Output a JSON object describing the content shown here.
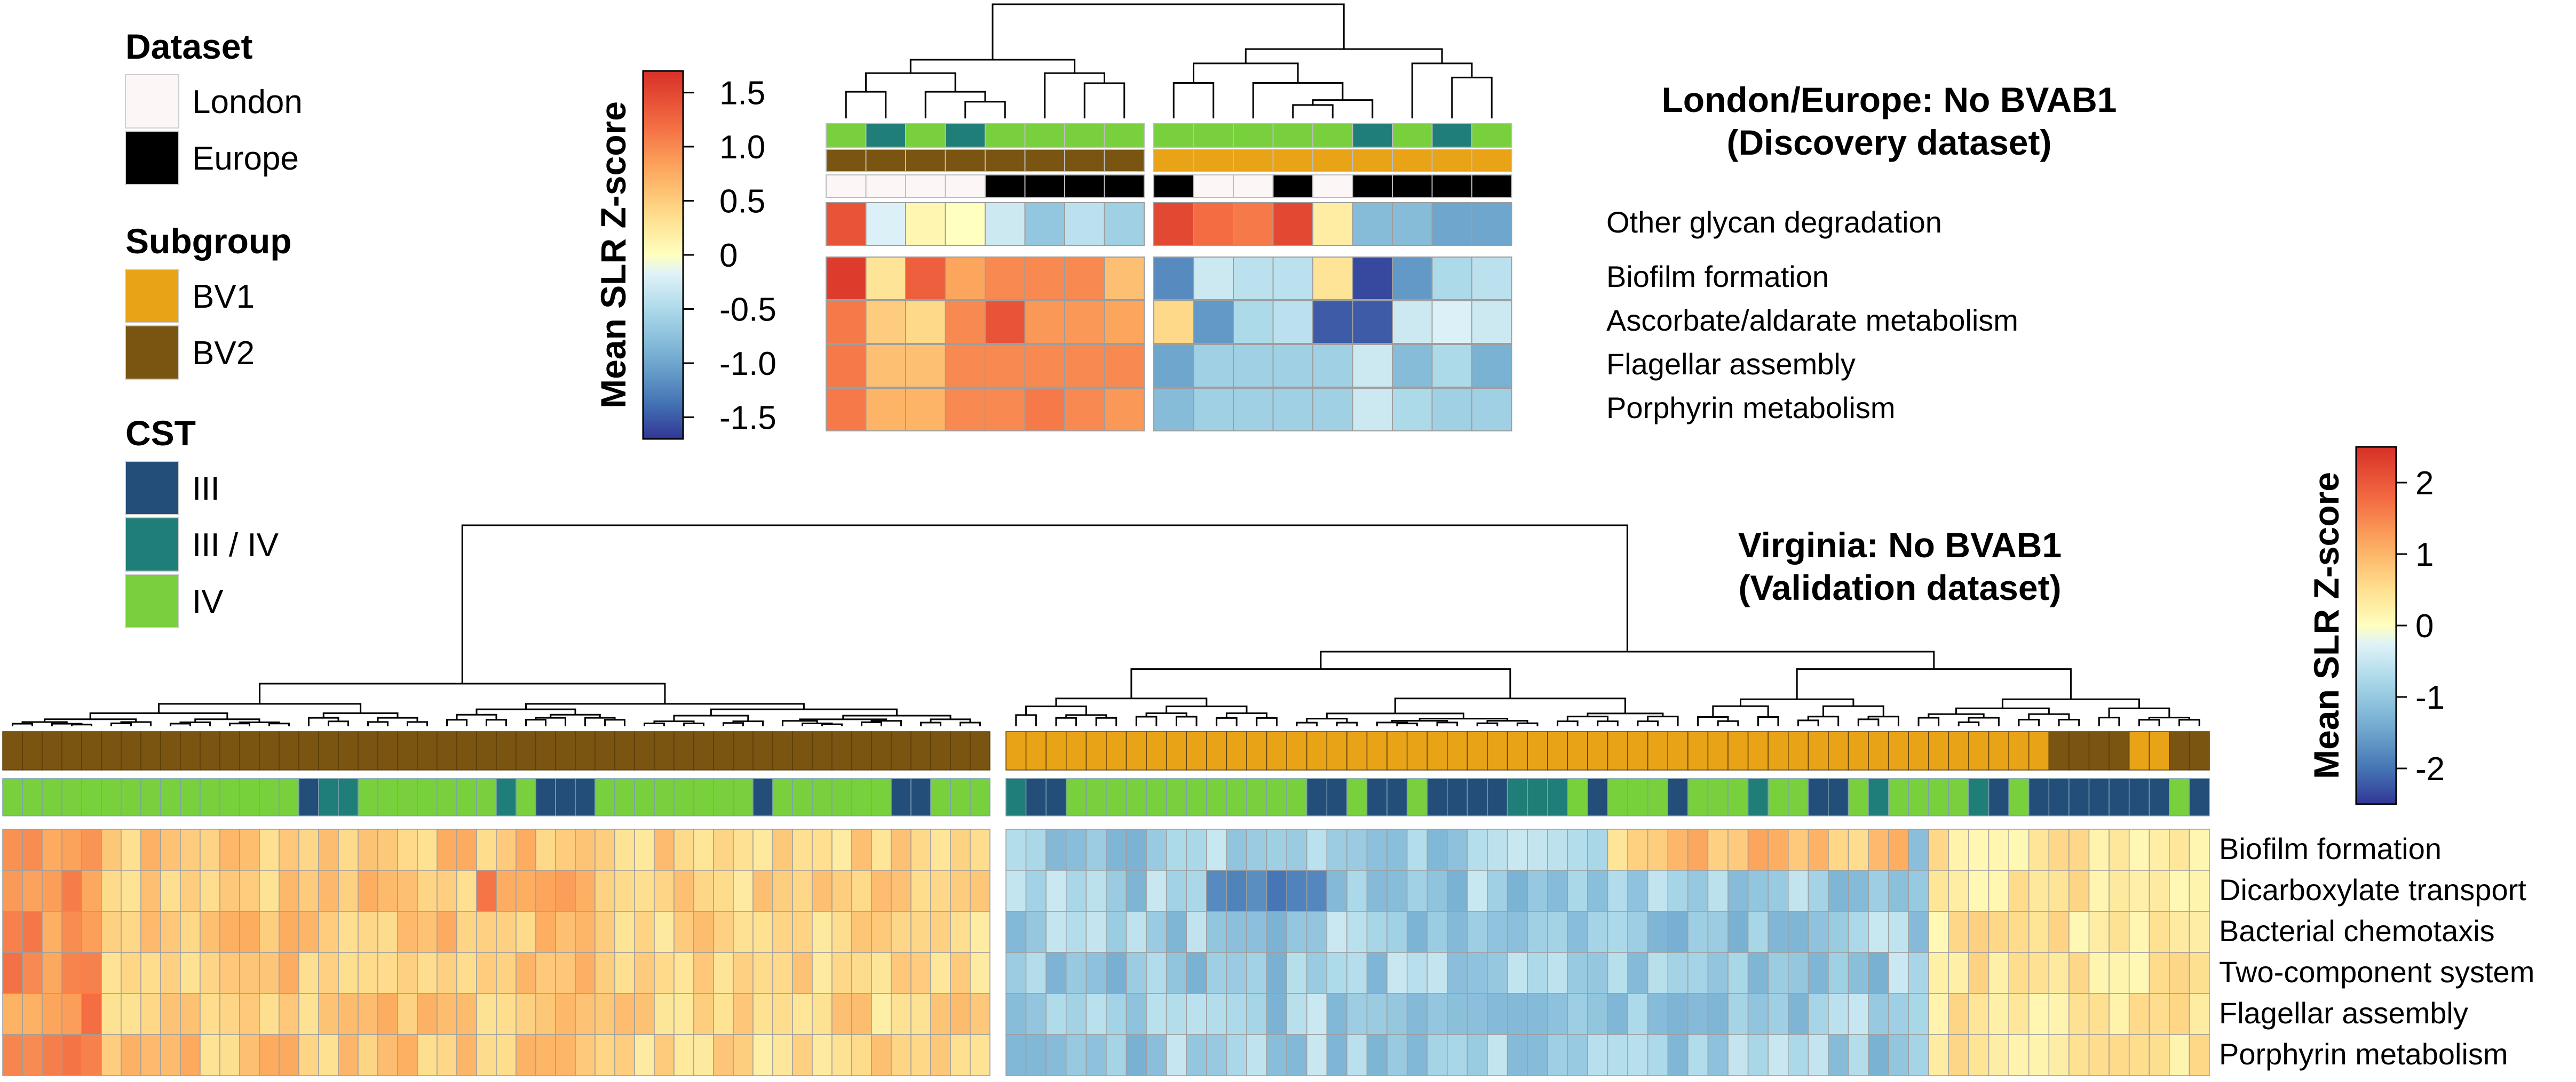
{
  "legend": {
    "sections": [
      {
        "title": "Dataset",
        "items": [
          {
            "label": "London",
            "color": "#FDF6F6"
          },
          {
            "label": "Europe",
            "color": "#000000"
          }
        ]
      },
      {
        "title": "Subgroup",
        "items": [
          {
            "label": "BV1",
            "color": "#E8A317"
          },
          {
            "label": "BV2",
            "color": "#7A5511"
          }
        ]
      },
      {
        "title": "CST",
        "items": [
          {
            "label": "III",
            "color": "#234E7A"
          },
          {
            "label": "III / IV",
            "color": "#1F7E77"
          },
          {
            "label": "IV",
            "color": "#77D03C"
          }
        ]
      }
    ]
  },
  "chart_data": [
    {
      "type": "heatmap",
      "title_lines": [
        "London/Europe: No BVAB1",
        "(Discovery dataset)"
      ],
      "rows": [
        "Other glycan degradation",
        "Biofilm formation",
        "Ascorbate/aldarate metabolism",
        "Flagellar assembly",
        "Porphyrin metabolism"
      ],
      "colorbar": {
        "title": "Mean SLR Z-score",
        "ticks": [
          "1.5",
          "1.0",
          "0.5",
          "0",
          "-0.5",
          "-1.0",
          "-1.5"
        ],
        "tick_values": [
          1.5,
          1.0,
          0.5,
          0,
          -0.5,
          -1.0,
          -1.5
        ],
        "range": [
          -1.7,
          1.7
        ]
      },
      "column_groups": [
        8,
        9
      ],
      "annotations": {
        "cst": [
          "IV",
          "III / IV",
          "IV",
          "III / IV",
          "IV",
          "IV",
          "IV",
          "IV",
          "IV",
          "IV",
          "IV",
          "IV",
          "IV",
          "III / IV",
          "IV",
          "III / IV",
          "IV"
        ],
        "subgroup": [
          "BV2",
          "BV2",
          "BV2",
          "BV2",
          "BV2",
          "BV2",
          "BV2",
          "BV2",
          "BV1",
          "BV1",
          "BV1",
          "BV1",
          "BV1",
          "BV1",
          "BV1",
          "BV1",
          "BV1"
        ],
        "dataset": [
          "London",
          "London",
          "London",
          "London",
          "Europe",
          "Europe",
          "Europe",
          "Europe",
          "Europe",
          "London",
          "London",
          "Europe",
          "London",
          "Europe",
          "Europe",
          "Europe",
          "Europe"
        ]
      },
      "values": [
        [
          1.4,
          -0.2,
          0.1,
          0.0,
          -0.3,
          -0.7,
          -0.4,
          -0.6,
          1.5,
          1.2,
          1.1,
          1.5,
          0.2,
          -0.8,
          -0.8,
          -1.0,
          -1.0
        ],
        [
          1.6,
          0.3,
          1.3,
          0.8,
          1.0,
          1.0,
          1.0,
          0.6,
          -1.2,
          -0.3,
          -0.4,
          -0.4,
          0.3,
          -1.6,
          -1.1,
          -0.5,
          -0.4
        ],
        [
          1.1,
          0.5,
          0.4,
          1.0,
          1.4,
          0.9,
          0.9,
          0.8,
          0.4,
          -1.1,
          -0.5,
          -0.4,
          -1.5,
          -1.5,
          -0.3,
          -0.2,
          -0.3
        ],
        [
          1.1,
          0.6,
          0.6,
          1.0,
          1.0,
          1.0,
          1.0,
          1.0,
          -1.0,
          -0.6,
          -0.6,
          -0.6,
          -0.6,
          -0.3,
          -0.8,
          -0.5,
          -0.9
        ],
        [
          1.1,
          0.7,
          0.7,
          1.0,
          1.0,
          1.1,
          1.0,
          0.9,
          -0.8,
          -0.6,
          -0.6,
          -0.6,
          -0.6,
          -0.3,
          -0.5,
          -0.6,
          -0.6
        ]
      ]
    },
    {
      "type": "heatmap",
      "title_lines": [
        "Virginia: No BVAB1",
        "(Validation dataset)"
      ],
      "rows": [
        "Biofilm formation",
        "Dicarboxylate transport",
        "Bacterial chemotaxis",
        "Two-component system",
        "Flagellar assembly",
        "Porphyrin metabolism"
      ],
      "colorbar": {
        "title": "Mean SLR Z-score",
        "ticks": [
          "2",
          "1",
          "0",
          "-1",
          "-2"
        ],
        "tick_values": [
          2,
          1,
          0,
          -1,
          -2
        ],
        "range": [
          -2.5,
          2.5
        ]
      },
      "column_groups": [
        50,
        60
      ],
      "n_columns": 110
    }
  ]
}
